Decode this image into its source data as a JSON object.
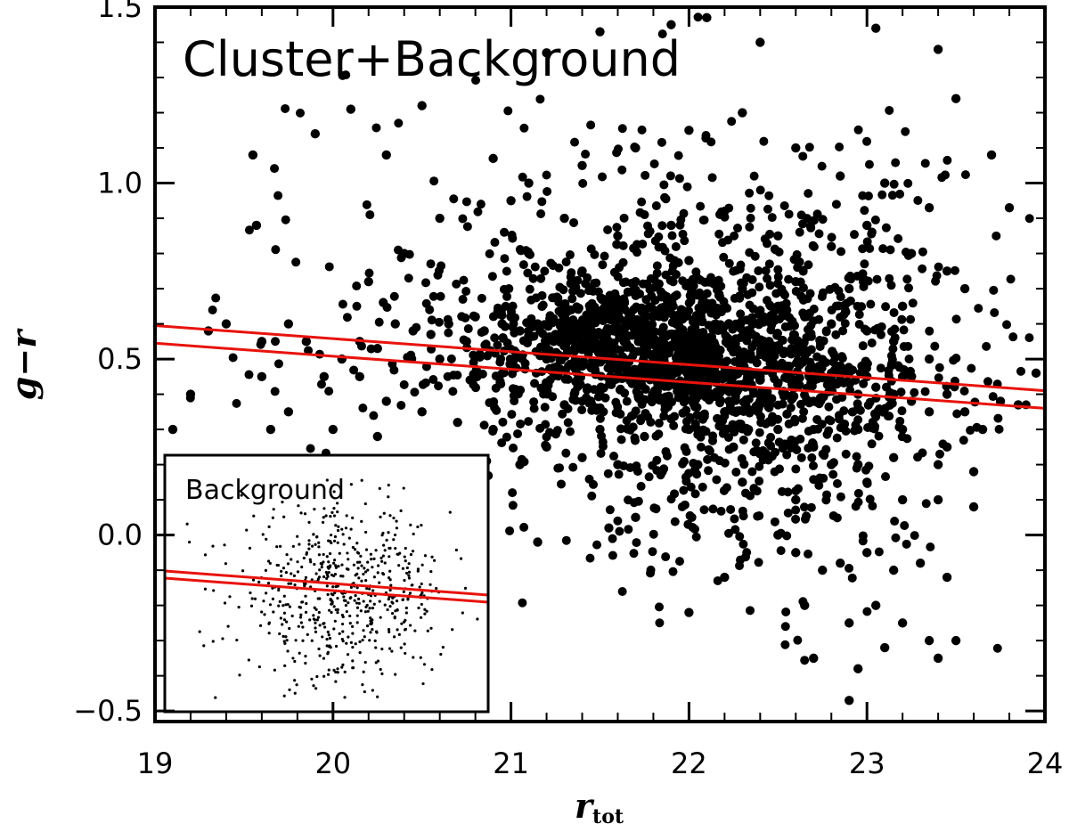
{
  "chart_data": [
    {
      "type": "scatter",
      "name": "main-panel",
      "title": "Cluster+Background",
      "xlabel": "r",
      "xlabel_subscript": "tot",
      "ylabel": "g−r",
      "xlim": [
        19,
        24
      ],
      "ylim": [
        -0.53,
        1.5
      ],
      "x_ticks": [
        19,
        20,
        21,
        22,
        23,
        24
      ],
      "x_tick_labels": [
        "19",
        "20",
        "21",
        "22",
        "23",
        "24"
      ],
      "y_ticks": [
        -0.5,
        0.0,
        0.5,
        1.0,
        1.5
      ],
      "y_tick_labels": [
        "−0.5",
        "0.0",
        "0.5",
        "1.0",
        "1.5"
      ],
      "grid": false,
      "marker_color": "#000000",
      "line_color": "#e8130c",
      "red_sequence_lines": [
        {
          "x": [
            19,
            24
          ],
          "y": [
            0.595,
            0.41
          ]
        },
        {
          "x": [
            19,
            24
          ],
          "y": [
            0.545,
            0.36
          ]
        }
      ],
      "points": [
        [
          19.3,
          0.58
        ],
        [
          19.4,
          0.6
        ],
        [
          19.6,
          0.55
        ],
        [
          19.75,
          0.6
        ],
        [
          19.85,
          0.55
        ],
        [
          19.95,
          0.45
        ],
        [
          20.05,
          0.5
        ],
        [
          20.15,
          0.55
        ],
        [
          20.25,
          0.53
        ],
        [
          20.35,
          0.6
        ],
        [
          20.45,
          0.58
        ],
        [
          20.55,
          0.57
        ],
        [
          20.65,
          0.6
        ],
        [
          20.75,
          0.55
        ],
        [
          20.85,
          0.58
        ],
        [
          20.95,
          0.6
        ],
        [
          21.05,
          0.58
        ],
        [
          21.15,
          0.6
        ],
        [
          21.25,
          0.57
        ],
        [
          21.35,
          0.6
        ],
        [
          21.45,
          0.58
        ],
        [
          21.55,
          0.55
        ],
        [
          21.65,
          0.6
        ],
        [
          21.75,
          0.57
        ],
        [
          21.85,
          0.55
        ],
        [
          21.95,
          0.58
        ],
        [
          22.05,
          0.55
        ],
        [
          22.15,
          0.6
        ],
        [
          22.25,
          0.52
        ],
        [
          22.35,
          0.5
        ],
        [
          22.45,
          0.55
        ],
        [
          22.55,
          0.48
        ],
        [
          22.65,
          0.5
        ],
        [
          22.75,
          0.45
        ],
        [
          22.85,
          0.48
        ],
        [
          22.95,
          0.4
        ],
        [
          23.05,
          0.42
        ],
        [
          23.15,
          0.4
        ],
        [
          23.25,
          0.38
        ],
        [
          23.35,
          0.35
        ],
        [
          23.45,
          0.4
        ],
        [
          23.55,
          0.35
        ],
        [
          23.65,
          0.3
        ],
        [
          23.75,
          0.38
        ],
        [
          23.85,
          0.37
        ],
        [
          23.95,
          0.46
        ],
        [
          19.55,
          1.08
        ],
        [
          19.57,
          0.88
        ],
        [
          19.9,
          1.14
        ],
        [
          20.1,
          1.21
        ],
        [
          20.5,
          1.22
        ],
        [
          20.3,
          1.08
        ],
        [
          21.2,
          1.37
        ],
        [
          21.5,
          1.43
        ],
        [
          21.9,
          1.45
        ],
        [
          22.4,
          1.4
        ],
        [
          22.1,
          1.47
        ],
        [
          23.05,
          1.44
        ],
        [
          23.4,
          1.38
        ],
        [
          23.5,
          1.24
        ],
        [
          23.7,
          1.08
        ],
        [
          23.8,
          0.93
        ],
        [
          20.9,
          1.07
        ],
        [
          21.1,
          1.0
        ],
        [
          21.4,
          1.05
        ],
        [
          21.7,
          1.1
        ],
        [
          22.0,
          1.15
        ],
        [
          22.3,
          1.2
        ],
        [
          22.6,
          1.1
        ],
        [
          22.85,
          1.02
        ],
        [
          23.1,
          1.0
        ],
        [
          23.35,
          0.93
        ],
        [
          21.0,
          0.95
        ],
        [
          21.3,
          0.9
        ],
        [
          21.6,
          0.85
        ],
        [
          21.9,
          0.88
        ],
        [
          22.2,
          0.92
        ],
        [
          22.5,
          0.85
        ],
        [
          22.8,
          0.82
        ],
        [
          23.0,
          0.88
        ],
        [
          23.25,
          0.8
        ],
        [
          23.45,
          0.75
        ],
        [
          21.1,
          0.8
        ],
        [
          21.4,
          0.75
        ],
        [
          21.7,
          0.72
        ],
        [
          22.0,
          0.78
        ],
        [
          22.3,
          0.7
        ],
        [
          22.6,
          0.72
        ],
        [
          22.9,
          0.7
        ],
        [
          23.2,
          0.65
        ],
        [
          23.55,
          0.7
        ],
        [
          20.6,
          0.9
        ],
        [
          20.4,
          0.8
        ],
        [
          20.2,
          0.72
        ],
        [
          20.15,
          0.45
        ],
        [
          20.3,
          0.38
        ],
        [
          20.5,
          0.35
        ],
        [
          20.7,
          0.32
        ],
        [
          20.9,
          0.3
        ],
        [
          21.05,
          0.2
        ],
        [
          21.2,
          0.25
        ],
        [
          21.4,
          0.22
        ],
        [
          21.6,
          0.2
        ],
        [
          21.85,
          0.18
        ],
        [
          22.05,
          0.2
        ],
        [
          22.3,
          0.15
        ],
        [
          22.6,
          0.1
        ],
        [
          22.8,
          0.2
        ],
        [
          23.0,
          0.15
        ],
        [
          23.2,
          0.1
        ],
        [
          23.4,
          0.1
        ],
        [
          23.6,
          0.08
        ],
        [
          22.5,
          0.3
        ],
        [
          22.7,
          0.3
        ],
        [
          22.95,
          0.3
        ],
        [
          23.2,
          0.3
        ],
        [
          23.45,
          0.25
        ],
        [
          22.2,
          0.35
        ],
        [
          21.9,
          0.33
        ],
        [
          21.6,
          0.35
        ],
        [
          21.3,
          0.37
        ],
        [
          21.5,
          0.4
        ],
        [
          21.8,
          0.4
        ],
        [
          22.1,
          0.42
        ],
        [
          22.4,
          0.38
        ],
        [
          22.7,
          0.38
        ],
        [
          22.95,
          0.36
        ],
        [
          22.5,
          0.0
        ],
        [
          22.6,
          -0.05
        ],
        [
          22.75,
          -0.1
        ],
        [
          22.85,
          -0.08
        ],
        [
          23.0,
          -0.05
        ],
        [
          23.15,
          -0.1
        ],
        [
          23.3,
          -0.08
        ],
        [
          23.45,
          -0.12
        ],
        [
          22.65,
          -0.2
        ],
        [
          22.9,
          -0.25
        ],
        [
          23.05,
          -0.2
        ],
        [
          23.2,
          -0.25
        ],
        [
          23.35,
          -0.3
        ],
        [
          22.7,
          -0.35
        ],
        [
          22.95,
          -0.38
        ],
        [
          23.1,
          -0.32
        ],
        [
          22.9,
          -0.47
        ],
        [
          23.4,
          -0.35
        ],
        [
          23.5,
          -0.3
        ],
        [
          22.0,
          -0.22
        ],
        [
          22.2,
          -0.12
        ],
        [
          21.15,
          -0.02
        ],
        [
          21.55,
          0.02
        ],
        [
          21.7,
          0.05
        ],
        [
          19.1,
          0.3
        ],
        [
          19.2,
          0.4
        ],
        [
          19.65,
          0.3
        ],
        [
          20.25,
          0.28
        ],
        [
          20.4,
          0.15
        ],
        [
          20.6,
          0.12
        ],
        [
          19.6,
          0.45
        ],
        [
          19.75,
          0.35
        ],
        [
          20.0,
          0.3
        ],
        [
          22.5,
          0.65
        ],
        [
          22.65,
          0.62
        ],
        [
          22.8,
          0.6
        ],
        [
          23.0,
          0.58
        ],
        [
          23.15,
          0.55
        ],
        [
          23.35,
          0.5
        ],
        [
          22.2,
          0.65
        ],
        [
          21.9,
          0.65
        ],
        [
          21.6,
          0.65
        ],
        [
          21.3,
          0.65
        ],
        [
          21.0,
          0.62
        ],
        [
          20.8,
          0.62
        ],
        [
          20.6,
          0.5
        ],
        [
          20.8,
          0.45
        ],
        [
          21.0,
          0.48
        ],
        [
          21.2,
          0.5
        ],
        [
          21.4,
          0.48
        ],
        [
          21.6,
          0.5
        ],
        [
          21.8,
          0.5
        ],
        [
          22.0,
          0.48
        ],
        [
          22.2,
          0.45
        ],
        [
          22.4,
          0.45
        ],
        [
          22.6,
          0.42
        ],
        [
          22.8,
          0.42
        ],
        [
          23.0,
          0.45
        ],
        [
          23.2,
          0.45
        ],
        [
          21.5,
          0.3
        ],
        [
          21.75,
          0.28
        ],
        [
          22.0,
          0.3
        ],
        [
          22.25,
          0.25
        ],
        [
          22.45,
          0.22
        ],
        [
          22.7,
          0.25
        ],
        [
          22.95,
          0.2
        ],
        [
          23.15,
          0.22
        ],
        [
          23.4,
          0.2
        ],
        [
          23.6,
          0.18
        ]
      ],
      "cloud_points_count": 2200
    },
    {
      "type": "scatter",
      "name": "inset-panel",
      "title": "Background",
      "xlim": [
        0,
        1
      ],
      "ylim": [
        0,
        1
      ],
      "marker_color": "#000000",
      "line_color": "#e8130c",
      "points_count": 600
    }
  ]
}
